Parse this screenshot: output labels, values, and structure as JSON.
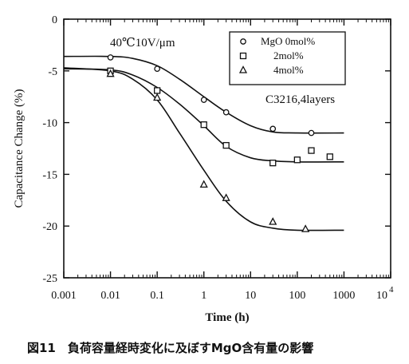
{
  "chart_data": {
    "type": "line",
    "xscale": "log",
    "xlim": [
      0.001,
      10000
    ],
    "ylim": [
      -25,
      0
    ],
    "xlabel": "Time (h)",
    "ylabel": "Capacitance Change (%)",
    "x_tick_labels": [
      "0.001",
      "0.01",
      "0.1",
      "1",
      "10",
      "100",
      "1000"
    ],
    "y_tick_labels": [
      "0",
      "-5",
      "-10",
      "-15",
      "-20",
      "-25"
    ],
    "y_ticks": [
      0,
      -5,
      -10,
      -15,
      -20,
      -25
    ],
    "x_ticks": [
      0.001,
      0.01,
      0.1,
      1,
      10,
      100,
      1000
    ],
    "annotations": [
      "40℃10V/μm",
      "C3216,4layers"
    ],
    "caption": "図11　負荷容量経時変化に及ぼすMgO含有量の影響",
    "legend_position": "top-right",
    "series": [
      {
        "name": "MgO 0mol%",
        "marker": "circle",
        "points": [
          [
            0.01,
            -3.7
          ],
          [
            0.1,
            -4.8
          ],
          [
            1,
            -7.8
          ],
          [
            3,
            -9.0
          ],
          [
            30,
            -10.6
          ],
          [
            200,
            -11.0
          ]
        ],
        "curve": [
          [
            0.001,
            -3.6
          ],
          [
            0.01,
            -3.6
          ],
          [
            0.03,
            -3.8
          ],
          [
            0.1,
            -4.5
          ],
          [
            0.3,
            -5.8
          ],
          [
            1,
            -7.5
          ],
          [
            3,
            -9.0
          ],
          [
            10,
            -10.3
          ],
          [
            30,
            -10.9
          ],
          [
            100,
            -11.0
          ],
          [
            1000,
            -11.0
          ]
        ]
      },
      {
        "name": "2mol%",
        "marker": "square",
        "points": [
          [
            0.01,
            -5.0
          ],
          [
            0.1,
            -6.9
          ],
          [
            1,
            -10.2
          ],
          [
            3,
            -12.2
          ],
          [
            30,
            -13.9
          ],
          [
            100,
            -13.6
          ],
          [
            200,
            -12.7
          ],
          [
            500,
            -13.3
          ]
        ],
        "curve": [
          [
            0.001,
            -4.8
          ],
          [
            0.01,
            -4.9
          ],
          [
            0.03,
            -5.4
          ],
          [
            0.1,
            -6.6
          ],
          [
            0.3,
            -8.2
          ],
          [
            1,
            -10.3
          ],
          [
            3,
            -12.3
          ],
          [
            10,
            -13.4
          ],
          [
            30,
            -13.7
          ],
          [
            100,
            -13.8
          ],
          [
            1000,
            -13.8
          ]
        ]
      },
      {
        "name": "4mol%",
        "marker": "triangle",
        "points": [
          [
            0.01,
            -5.3
          ],
          [
            0.1,
            -7.6
          ],
          [
            1,
            -16.0
          ],
          [
            3,
            -17.3
          ],
          [
            30,
            -19.6
          ],
          [
            150,
            -20.3
          ]
        ],
        "curve": [
          [
            0.001,
            -4.7
          ],
          [
            0.01,
            -5.0
          ],
          [
            0.03,
            -5.8
          ],
          [
            0.1,
            -7.8
          ],
          [
            0.3,
            -11.0
          ],
          [
            1,
            -14.6
          ],
          [
            3,
            -17.6
          ],
          [
            10,
            -19.6
          ],
          [
            30,
            -20.2
          ],
          [
            100,
            -20.4
          ],
          [
            1000,
            -20.4
          ]
        ]
      }
    ],
    "x_tick_superscript": {
      "base": "10",
      "exp": "4"
    }
  }
}
